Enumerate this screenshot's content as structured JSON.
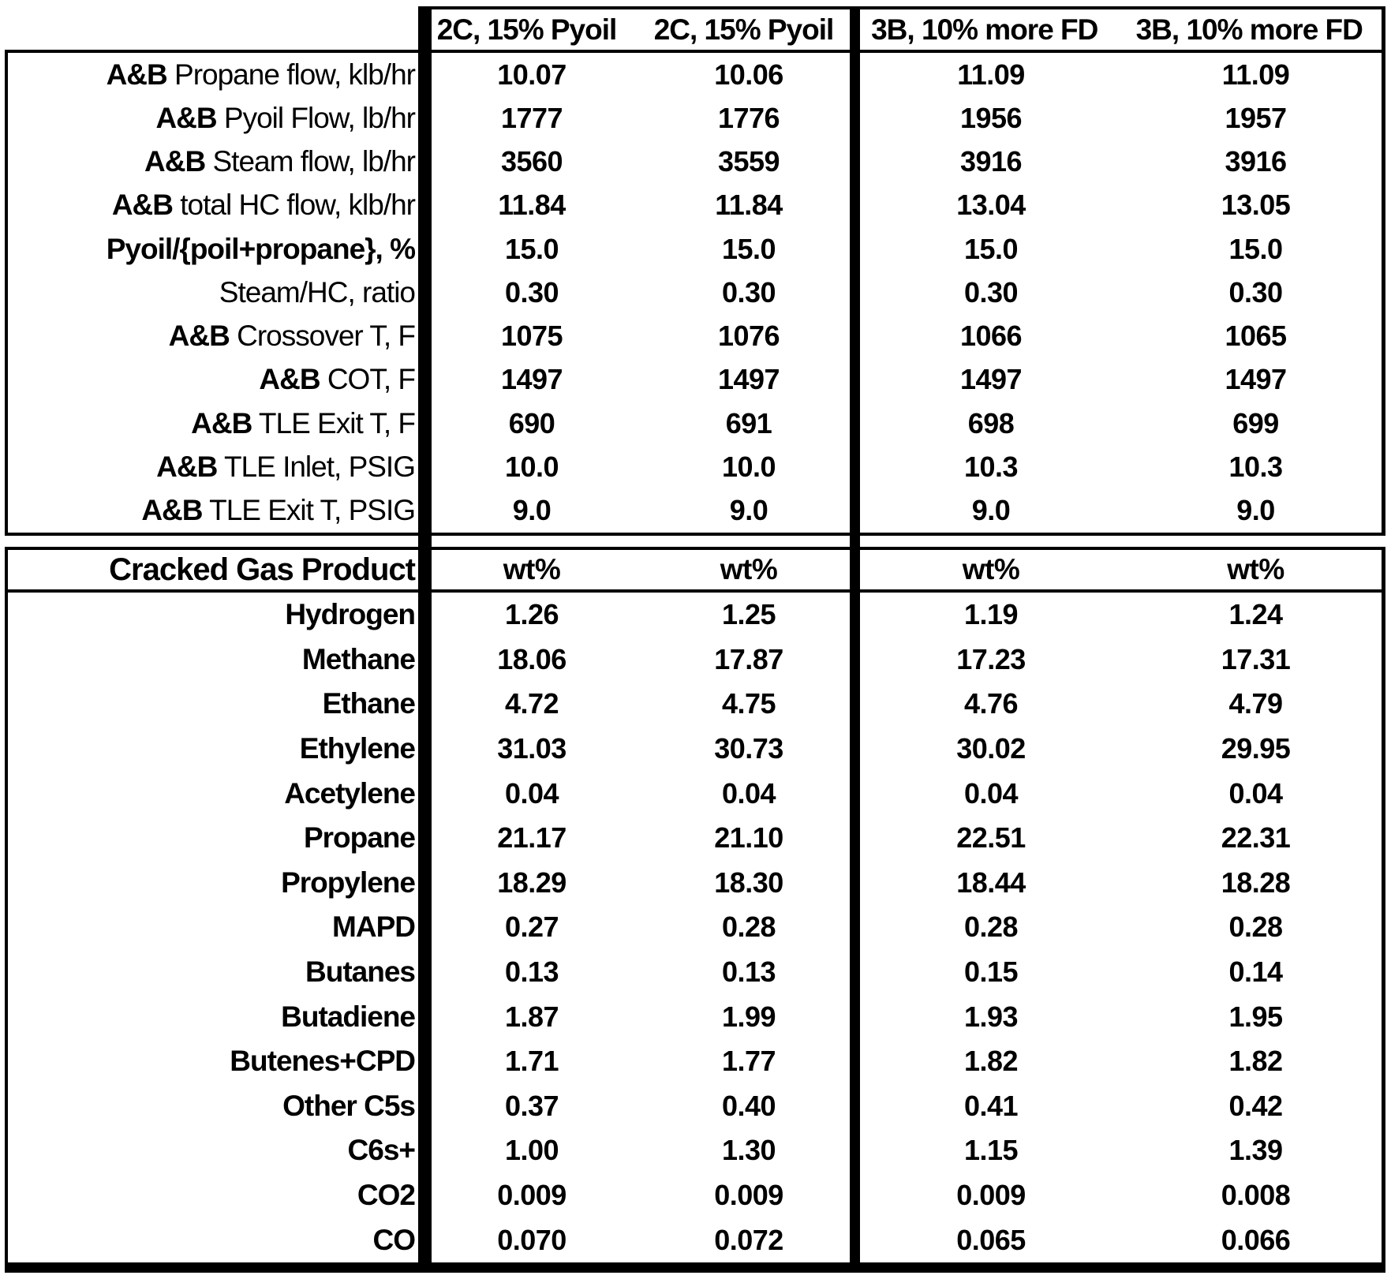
{
  "colors": {
    "ink": "#000000",
    "paper": "#ffffff"
  },
  "header": {
    "groups": [
      {
        "labels": [
          "2C, 15% Pyoil",
          "2C, 15% Pyoil"
        ]
      },
      {
        "labels": [
          "3B, 10% more FD",
          "3B, 10% more FD"
        ]
      }
    ]
  },
  "section1": {
    "rows": [
      {
        "label_bold": "A&B",
        "label_rest": " Propane flow, klb/hr",
        "values": [
          "10.07",
          "10.06",
          "11.09",
          "11.09"
        ]
      },
      {
        "label_bold": "A&B",
        "label_rest": " Pyoil Flow, lb/hr",
        "values": [
          "1777",
          "1776",
          "1956",
          "1957"
        ]
      },
      {
        "label_bold": "A&B",
        "label_rest": " Steam flow, lb/hr",
        "values": [
          "3560",
          "3559",
          "3916",
          "3916"
        ]
      },
      {
        "label_bold": "A&B",
        "label_rest": " total HC flow, klb/hr",
        "values": [
          "11.84",
          "11.84",
          "13.04",
          "13.05"
        ]
      },
      {
        "label_bold": "Pyoil/{poil+propane}, %",
        "label_rest": "",
        "values": [
          "15.0",
          "15.0",
          "15.0",
          "15.0"
        ]
      },
      {
        "label_bold": "",
        "label_rest": "Steam/HC, ratio",
        "values": [
          "0.30",
          "0.30",
          "0.30",
          "0.30"
        ]
      },
      {
        "label_bold": "A&B",
        "label_rest": " Crossover T, F",
        "values": [
          "1075",
          "1076",
          "1066",
          "1065"
        ]
      },
      {
        "label_bold": "A&B",
        "label_rest": " COT, F",
        "values": [
          "1497",
          "1497",
          "1497",
          "1497"
        ]
      },
      {
        "label_bold": "A&B",
        "label_rest": " TLE Exit T, F",
        "values": [
          "690",
          "691",
          "698",
          "699"
        ]
      },
      {
        "label_bold": "A&B",
        "label_rest": " TLE Inlet, PSIG",
        "values": [
          "10.0",
          "10.0",
          "10.3",
          "10.3"
        ]
      },
      {
        "label_bold": "A&B",
        "label_rest": " TLE Exit T, PSIG",
        "values": [
          "9.0",
          "9.0",
          "9.0",
          "9.0"
        ]
      }
    ]
  },
  "section2": {
    "header": {
      "label": "Cracked Gas Product",
      "units": [
        "wt%",
        "wt%",
        "wt%",
        "wt%"
      ]
    },
    "rows": [
      {
        "label": "Hydrogen",
        "values": [
          "1.26",
          "1.25",
          "1.19",
          "1.24"
        ]
      },
      {
        "label": "Methane",
        "values": [
          "18.06",
          "17.87",
          "17.23",
          "17.31"
        ]
      },
      {
        "label": "Ethane",
        "values": [
          "4.72",
          "4.75",
          "4.76",
          "4.79"
        ]
      },
      {
        "label": "Ethylene",
        "values": [
          "31.03",
          "30.73",
          "30.02",
          "29.95"
        ]
      },
      {
        "label": "Acetylene",
        "values": [
          "0.04",
          "0.04",
          "0.04",
          "0.04"
        ]
      },
      {
        "label": "Propane",
        "values": [
          "21.17",
          "21.10",
          "22.51",
          "22.31"
        ]
      },
      {
        "label": "Propylene",
        "values": [
          "18.29",
          "18.30",
          "18.44",
          "18.28"
        ]
      },
      {
        "label": "MAPD",
        "values": [
          "0.27",
          "0.28",
          "0.28",
          "0.28"
        ]
      },
      {
        "label": "Butanes",
        "values": [
          "0.13",
          "0.13",
          "0.15",
          "0.14"
        ]
      },
      {
        "label": "Butadiene",
        "values": [
          "1.87",
          "1.99",
          "1.93",
          "1.95"
        ]
      },
      {
        "label": "Butenes+CPD",
        "values": [
          "1.71",
          "1.77",
          "1.82",
          "1.82"
        ]
      },
      {
        "label": "Other C5s",
        "values": [
          "0.37",
          "0.40",
          "0.41",
          "0.42"
        ]
      },
      {
        "label": "C6s+",
        "values": [
          "1.00",
          "1.30",
          "1.15",
          "1.39"
        ]
      },
      {
        "label": "CO2",
        "values": [
          "0.009",
          "0.009",
          "0.009",
          "0.008"
        ]
      },
      {
        "label": "CO",
        "values": [
          "0.070",
          "0.072",
          "0.065",
          "0.066"
        ]
      }
    ]
  }
}
